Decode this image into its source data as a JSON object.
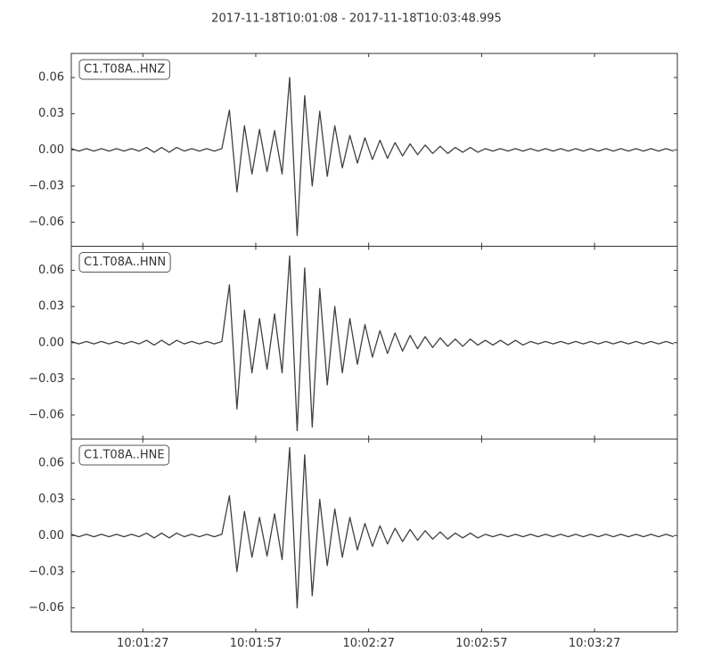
{
  "chart_data": {
    "type": "line",
    "title": "2017-11-18T10:01:08  -  2017-11-18T10:03:48.995",
    "x": [
      "10:01:08",
      "10:01:10",
      "10:01:12",
      "10:01:14",
      "10:01:16",
      "10:01:18",
      "10:01:20",
      "10:01:22",
      "10:01:24",
      "10:01:26",
      "10:01:28",
      "10:01:30",
      "10:01:32",
      "10:01:34",
      "10:01:36",
      "10:01:38",
      "10:01:40",
      "10:01:42",
      "10:01:44",
      "10:01:46",
      "10:01:48",
      "10:01:50",
      "10:01:52",
      "10:01:54",
      "10:01:56",
      "10:01:58",
      "10:02:00",
      "10:02:02",
      "10:02:04",
      "10:02:06",
      "10:02:08",
      "10:02:10",
      "10:02:12",
      "10:02:14",
      "10:02:16",
      "10:02:18",
      "10:02:20",
      "10:02:22",
      "10:02:24",
      "10:02:26",
      "10:02:28",
      "10:02:30",
      "10:02:32",
      "10:02:34",
      "10:02:36",
      "10:02:38",
      "10:02:40",
      "10:02:42",
      "10:02:44",
      "10:02:46",
      "10:02:48",
      "10:02:50",
      "10:02:52",
      "10:02:54",
      "10:02:56",
      "10:02:58",
      "10:03:00",
      "10:03:02",
      "10:03:04",
      "10:03:06",
      "10:03:08",
      "10:03:10",
      "10:03:12",
      "10:03:14",
      "10:03:16",
      "10:03:18",
      "10:03:20",
      "10:03:22",
      "10:03:24",
      "10:03:26",
      "10:03:28",
      "10:03:30",
      "10:03:32",
      "10:03:34",
      "10:03:36",
      "10:03:38",
      "10:03:40",
      "10:03:42",
      "10:03:44",
      "10:03:46",
      "10:03:48"
    ],
    "xlim": [
      "10:01:08",
      "10:03:48.995"
    ],
    "xticks": [
      "10:01:27",
      "10:01:57",
      "10:02:27",
      "10:02:57",
      "10:03:27"
    ],
    "ylim": [
      -0.08,
      0.08
    ],
    "yticks": [
      {
        "value": -0.06,
        "label": "−0.06"
      },
      {
        "value": -0.03,
        "label": "−0.03"
      },
      {
        "value": 0,
        "label": "0.00"
      },
      0.03,
      0.06
    ],
    "subplots": true,
    "series": [
      {
        "name": "C1.T08A..HNZ",
        "color": "#404040",
        "values": [
          0.001,
          -0.001,
          0.001,
          -0.001,
          0.001,
          -0.001,
          0.001,
          -0.001,
          0.001,
          -0.001,
          0.002,
          -0.002,
          0.002,
          -0.002,
          0.002,
          -0.001,
          0.001,
          -0.001,
          0.001,
          -0.001,
          0.001,
          0.033,
          -0.035,
          0.02,
          -0.02,
          0.017,
          -0.018,
          0.016,
          -0.02,
          0.06,
          -0.071,
          0.045,
          -0.03,
          0.032,
          -0.022,
          0.02,
          -0.015,
          0.012,
          -0.011,
          0.01,
          -0.008,
          0.008,
          -0.007,
          0.006,
          -0.005,
          0.005,
          -0.004,
          0.004,
          -0.003,
          0.003,
          -0.003,
          0.002,
          -0.002,
          0.002,
          -0.002,
          0.001,
          -0.001,
          0.001,
          -0.001,
          0.001,
          -0.001,
          0.001,
          -0.001,
          0.001,
          -0.001,
          0.001,
          -0.001,
          0.001,
          -0.001,
          0.001,
          -0.001,
          0.001,
          -0.001,
          0.001,
          -0.001,
          0.001,
          -0.001,
          0.001,
          -0.001,
          0.001,
          -0.001
        ]
      },
      {
        "name": "C1.T08A..HNN",
        "color": "#404040",
        "values": [
          0.001,
          -0.001,
          0.001,
          -0.001,
          0.001,
          -0.001,
          0.001,
          -0.001,
          0.001,
          -0.001,
          0.002,
          -0.002,
          0.002,
          -0.002,
          0.002,
          -0.001,
          0.001,
          -0.001,
          0.001,
          -0.001,
          0.001,
          0.048,
          -0.055,
          0.027,
          -0.025,
          0.02,
          -0.022,
          0.024,
          -0.025,
          0.072,
          -0.073,
          0.062,
          -0.07,
          0.045,
          -0.035,
          0.03,
          -0.025,
          0.02,
          -0.018,
          0.015,
          -0.012,
          0.01,
          -0.009,
          0.008,
          -0.007,
          0.006,
          -0.005,
          0.005,
          -0.004,
          0.004,
          -0.003,
          0.003,
          -0.003,
          0.003,
          -0.002,
          0.002,
          -0.002,
          0.002,
          -0.002,
          0.002,
          -0.002,
          0.001,
          -0.001,
          0.001,
          -0.001,
          0.001,
          -0.001,
          0.001,
          -0.001,
          0.001,
          -0.001,
          0.001,
          -0.001,
          0.001,
          -0.001,
          0.001,
          -0.001,
          0.001,
          -0.001,
          0.001,
          -0.001
        ]
      },
      {
        "name": "C1.T08A..HNE",
        "color": "#404040",
        "values": [
          0.001,
          -0.001,
          0.001,
          -0.001,
          0.001,
          -0.001,
          0.001,
          -0.001,
          0.001,
          -0.001,
          0.002,
          -0.002,
          0.002,
          -0.002,
          0.002,
          -0.001,
          0.001,
          -0.001,
          0.001,
          -0.001,
          0.001,
          0.033,
          -0.03,
          0.02,
          -0.018,
          0.015,
          -0.017,
          0.018,
          -0.02,
          0.073,
          -0.06,
          0.067,
          -0.05,
          0.03,
          -0.025,
          0.022,
          -0.018,
          0.015,
          -0.012,
          0.01,
          -0.009,
          0.008,
          -0.007,
          0.006,
          -0.005,
          0.005,
          -0.004,
          0.004,
          -0.003,
          0.003,
          -0.003,
          0.002,
          -0.002,
          0.002,
          -0.002,
          0.001,
          -0.001,
          0.001,
          -0.001,
          0.001,
          -0.001,
          0.001,
          -0.001,
          0.001,
          -0.001,
          0.001,
          -0.001,
          0.001,
          -0.001,
          0.001,
          -0.001,
          0.001,
          -0.001,
          0.001,
          -0.001,
          0.001,
          -0.001,
          0.001,
          -0.001,
          0.001,
          -0.001
        ]
      }
    ]
  }
}
